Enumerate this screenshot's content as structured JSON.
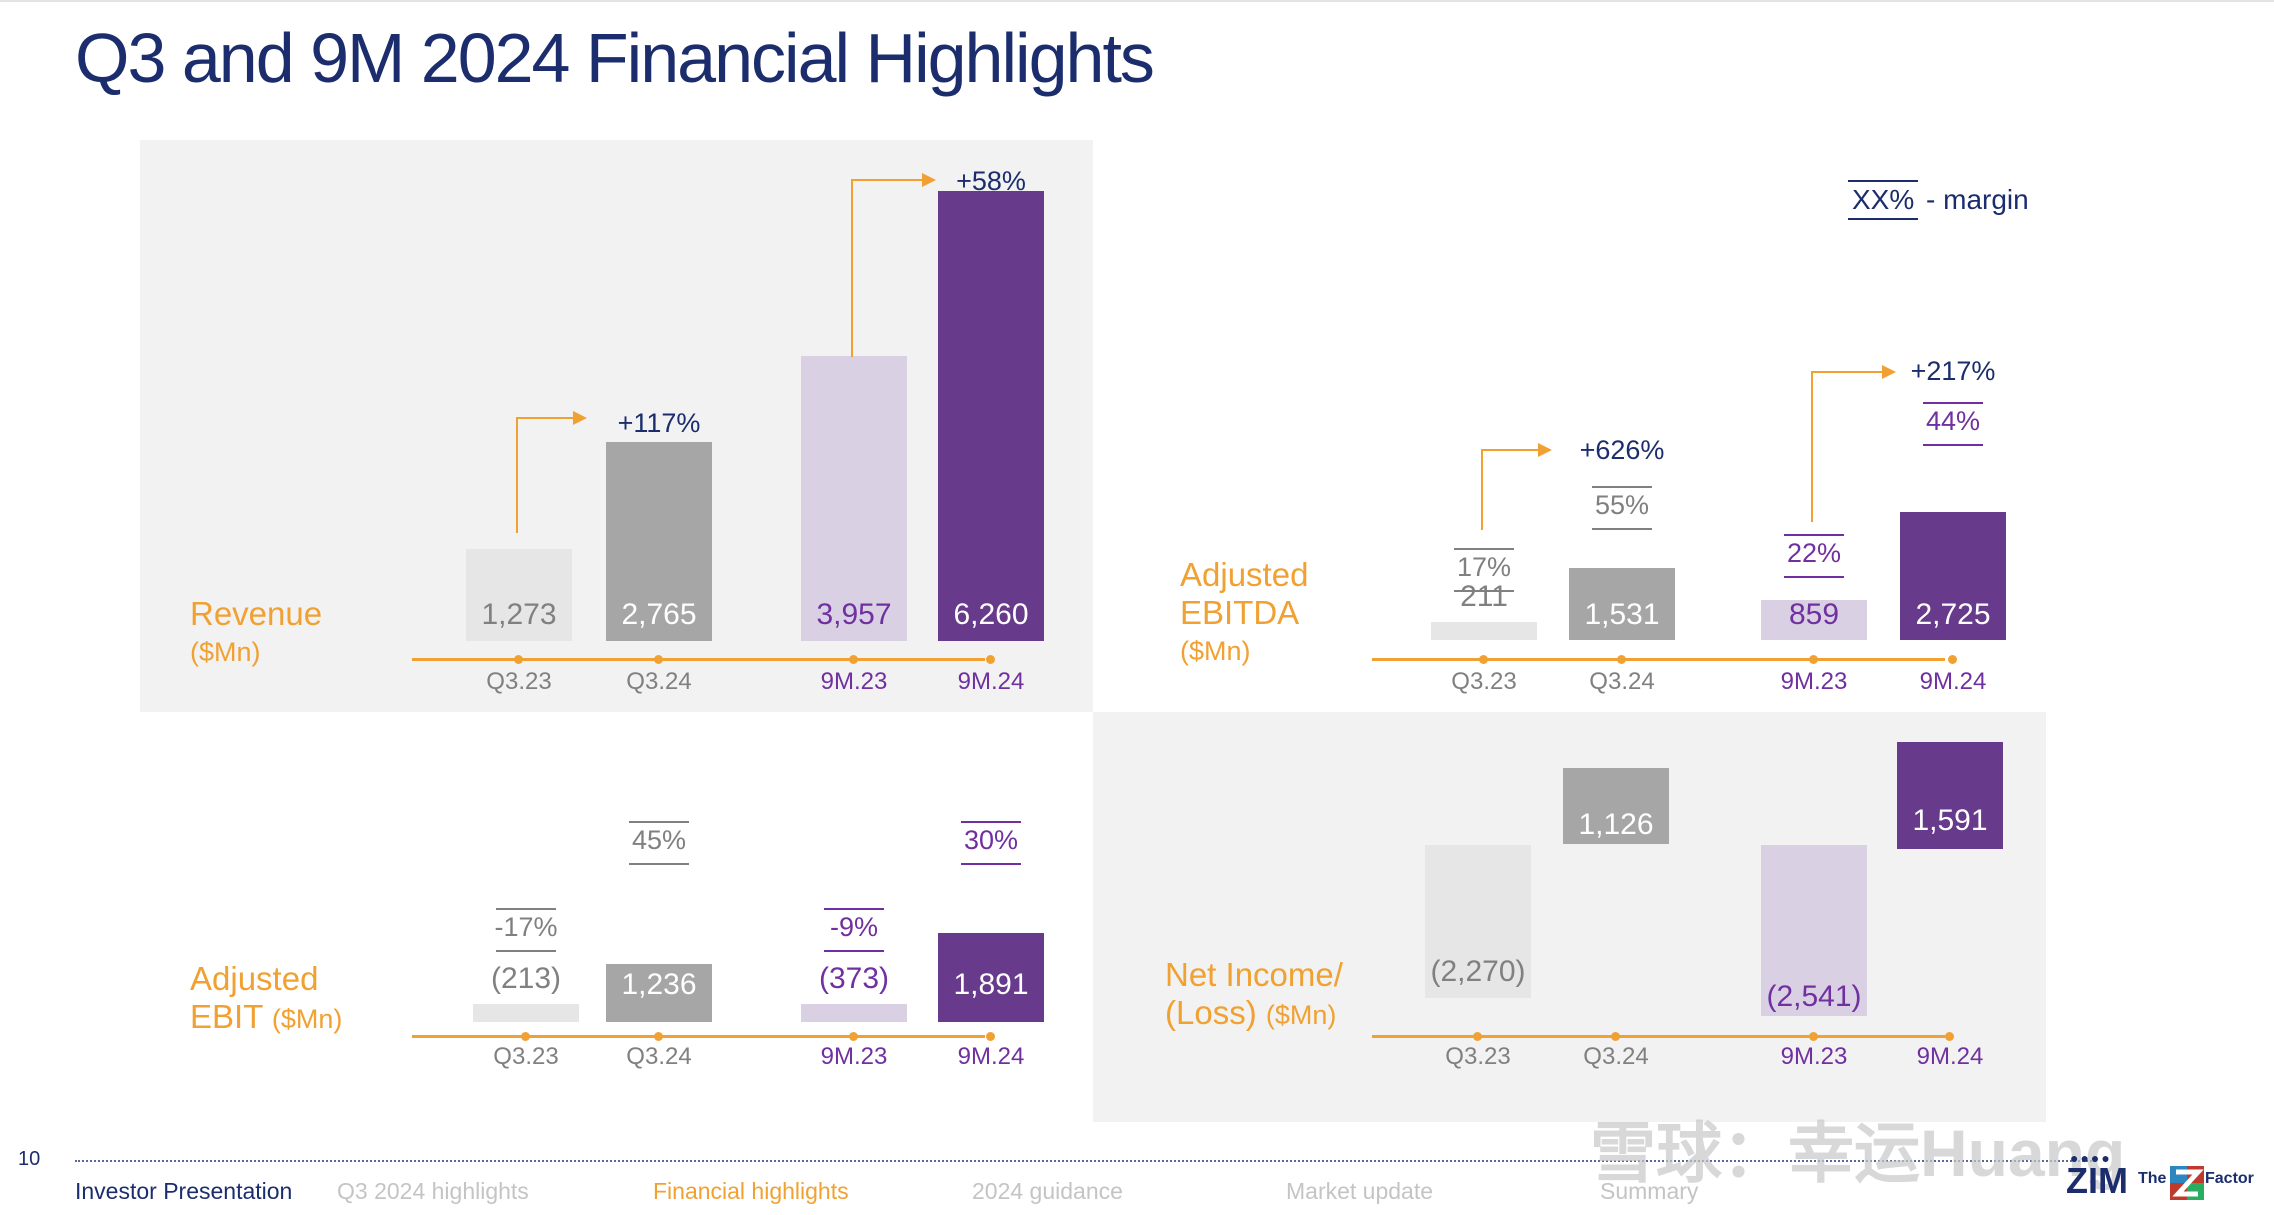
{
  "title": "Q3 and 9M 2024 Financial Highlights",
  "legend": {
    "box": "XX%",
    "text": " - margin"
  },
  "colors": {
    "q323": "#e6e6e6",
    "q324": "#a6a6a6",
    "m923": "#d9d0e4",
    "m924": "#673a8b",
    "orange": "#f0a132",
    "navy": "#1c2d6e",
    "purple": "#7030a0",
    "grey_text": "#808080"
  },
  "chart_data": [
    {
      "id": "revenue",
      "type": "bar",
      "label_main": "Revenue",
      "label_unit": "($Mn)",
      "categories": [
        "Q3.23",
        "Q3.24",
        "9M.23",
        "9M.24"
      ],
      "values": [
        1273,
        2765,
        3957,
        6260
      ],
      "value_labels": [
        "1,273",
        "2,765",
        "3,957",
        "6,260"
      ],
      "margins": [],
      "growth": [
        "+117%",
        "+58%"
      ]
    },
    {
      "id": "ebitda",
      "type": "bar",
      "label_main": "Adjusted",
      "label_main2": "EBITDA",
      "label_unit": "($Mn)",
      "categories": [
        "Q3.23",
        "Q3.24",
        "9M.23",
        "9M.24"
      ],
      "values": [
        211,
        1531,
        859,
        2725
      ],
      "value_labels": [
        "211",
        "1,531",
        "859",
        "2,725"
      ],
      "margins": [
        "17%",
        "55%",
        "22%",
        "44%"
      ],
      "growth": [
        "+626%",
        "+217%"
      ]
    },
    {
      "id": "ebit",
      "type": "bar",
      "label_main": "Adjusted",
      "label_main2": "EBIT",
      "label_unit": "($Mn)",
      "categories": [
        "Q3.23",
        "Q3.24",
        "9M.23",
        "9M.24"
      ],
      "values": [
        -213,
        1236,
        -373,
        1891
      ],
      "value_labels": [
        "(213)",
        "1,236",
        "(373)",
        "1,891"
      ],
      "margins": [
        "-17%",
        "45%",
        "-9%",
        "30%"
      ],
      "growth": []
    },
    {
      "id": "netincome",
      "type": "bar",
      "label_main": "Net Income/",
      "label_main2": "(Loss)",
      "label_unit": "($Mn)",
      "categories": [
        "Q3.23",
        "Q3.24",
        "9M.23",
        "9M.24"
      ],
      "values": [
        -2270,
        1126,
        -2541,
        1591
      ],
      "value_labels": [
        "(2,270)",
        "1,126",
        "(2,541)",
        "1,591"
      ],
      "margins": [],
      "growth": []
    }
  ],
  "footer": {
    "page_number": "10",
    "left": "Investor Presentation",
    "nav": [
      {
        "label": "Q3 2024 highlights",
        "active": false
      },
      {
        "label": "Financial highlights",
        "active": true
      },
      {
        "label": "2024 guidance",
        "active": false
      },
      {
        "label": "Market update",
        "active": false
      },
      {
        "label": "Summary",
        "active": false
      }
    ]
  },
  "watermark": "雪球：幸运Huang",
  "logo": {
    "main": "ZIM",
    "the": "The",
    "factor": "Factor"
  }
}
